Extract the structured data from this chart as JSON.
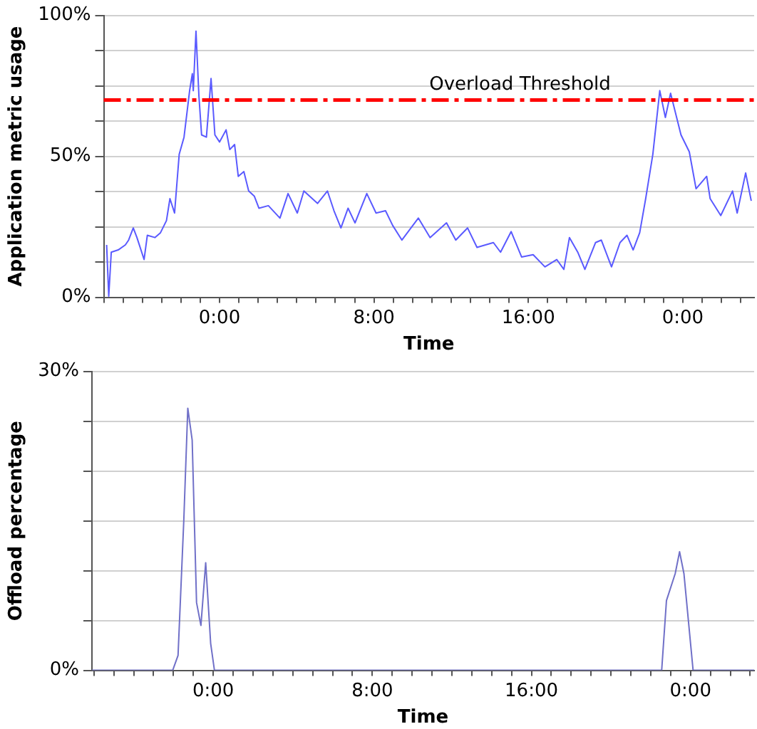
{
  "chart_data": [
    {
      "type": "line",
      "xlabel": "Time",
      "ylabel": "Application metric usage",
      "grid": "y",
      "xlim": [
        -6,
        27.7
      ],
      "ylim": [
        0,
        100
      ],
      "xticks": [
        {
          "value": -6,
          "label": null
        },
        {
          "value": -5,
          "label": null
        },
        {
          "value": -4,
          "label": null
        },
        {
          "value": -3,
          "label": null
        },
        {
          "value": -2,
          "label": null
        },
        {
          "value": -1,
          "label": null
        },
        {
          "value": 0,
          "label": "0:00"
        },
        {
          "value": 1,
          "label": null
        },
        {
          "value": 2,
          "label": null
        },
        {
          "value": 3,
          "label": null
        },
        {
          "value": 4,
          "label": null
        },
        {
          "value": 5,
          "label": null
        },
        {
          "value": 6,
          "label": null
        },
        {
          "value": 7,
          "label": null
        },
        {
          "value": 8,
          "label": "8:00"
        },
        {
          "value": 9,
          "label": null
        },
        {
          "value": 10,
          "label": null
        },
        {
          "value": 11,
          "label": null
        },
        {
          "value": 12,
          "label": null
        },
        {
          "value": 13,
          "label": null
        },
        {
          "value": 14,
          "label": null
        },
        {
          "value": 15,
          "label": null
        },
        {
          "value": 16,
          "label": "16:00"
        },
        {
          "value": 17,
          "label": null
        },
        {
          "value": 18,
          "label": null
        },
        {
          "value": 19,
          "label": null
        },
        {
          "value": 20,
          "label": null
        },
        {
          "value": 21,
          "label": null
        },
        {
          "value": 22,
          "label": null
        },
        {
          "value": 23,
          "label": null
        },
        {
          "value": 24,
          "label": "0:00"
        },
        {
          "value": 25,
          "label": null
        },
        {
          "value": 26,
          "label": null
        },
        {
          "value": 27,
          "label": null
        }
      ],
      "yticks": [
        {
          "value": 0,
          "label": "0%"
        },
        {
          "value": 12.5,
          "label": null
        },
        {
          "value": 25,
          "label": null
        },
        {
          "value": 37.5,
          "label": null
        },
        {
          "value": 50,
          "label": "50%"
        },
        {
          "value": 62.5,
          "label": null
        },
        {
          "value": 75,
          "label": null
        },
        {
          "value": 87.5,
          "label": null
        },
        {
          "value": 100,
          "label": "100%"
        }
      ],
      "x": [
        -5.85,
        -5.74,
        -5.61,
        -5.25,
        -4.88,
        -4.71,
        -4.47,
        -4.28,
        -3.91,
        -3.74,
        -3.35,
        -3.06,
        -2.75,
        -2.57,
        -2.33,
        -2.09,
        -1.84,
        -1.55,
        -1.41,
        -1.36,
        -1.22,
        -1.07,
        -0.93,
        -0.68,
        -0.44,
        -0.24,
        0,
        0.34,
        0.53,
        0.78,
        0.97,
        1.26,
        1.51,
        1.8,
        2.04,
        2.53,
        3.13,
        3.55,
        4.03,
        4.37,
        5.08,
        5.59,
        5.93,
        6.29,
        6.66,
        7.02,
        7.63,
        8.11,
        8.6,
        8.97,
        9.45,
        10.3,
        10.91,
        11.76,
        12.24,
        12.85,
        13.34,
        14.19,
        14.56,
        15.11,
        15.65,
        16.25,
        16.86,
        17.47,
        17.84,
        18.13,
        18.56,
        18.93,
        19.48,
        19.78,
        20.31,
        20.75,
        21.11,
        21.43,
        21.77,
        22.08,
        22.45,
        22.81,
        23.1,
        23.37,
        23.91,
        24.34,
        24.69,
        25.24,
        25.42,
        25.97,
        26.58,
        26.82,
        27.26,
        27.55
      ],
      "series": [
        {
          "color": "#5a5aff",
          "values": [
            18.6,
            0.4,
            16,
            16.8,
            18.6,
            20.3,
            24.6,
            21.2,
            13.4,
            22,
            21.2,
            22.9,
            27.2,
            35,
            29.9,
            50.7,
            56.8,
            73.3,
            79.3,
            73.3,
            94.4,
            71.6,
            57.6,
            56.8,
            77.6,
            57.6,
            55.1,
            59.4,
            52.4,
            54.2,
            42.9,
            44.6,
            37.7,
            35.9,
            31.6,
            32.5,
            28.1,
            36.8,
            29.9,
            37.7,
            33.3,
            37.7,
            30.7,
            24.6,
            31.6,
            26.4,
            36.8,
            29.9,
            30.7,
            25.5,
            20.3,
            28.1,
            21.2,
            26.4,
            20.3,
            24.6,
            17.7,
            19.4,
            16,
            23.3,
            14.3,
            15.1,
            10.8,
            13.4,
            9.9,
            21.2,
            16,
            9.9,
            19.4,
            20.3,
            10.8,
            19.4,
            22,
            16.8,
            22.9,
            35,
            50.7,
            73.3,
            63.8,
            72.4,
            57.6,
            51.6,
            38.5,
            42.9,
            35,
            29,
            37.7,
            29.9,
            44.1,
            34.2
          ]
        }
      ],
      "ref_lines": [
        {
          "axis": "y",
          "value": 70,
          "label": "Overload Threshold",
          "color": "#ff0000",
          "line_style": "dashed"
        }
      ]
    },
    {
      "type": "line",
      "xlabel": "Time",
      "ylabel": "Offload percentage",
      "grid": "y",
      "xlim": [
        -6.1,
        27.2
      ],
      "ylim": [
        0,
        30
      ],
      "xticks": [
        {
          "value": -6,
          "label": null
        },
        {
          "value": -5,
          "label": null
        },
        {
          "value": -4,
          "label": null
        },
        {
          "value": -3,
          "label": null
        },
        {
          "value": -2,
          "label": null
        },
        {
          "value": -1,
          "label": null
        },
        {
          "value": 0,
          "label": "0:00"
        },
        {
          "value": 1,
          "label": null
        },
        {
          "value": 2,
          "label": null
        },
        {
          "value": 3,
          "label": null
        },
        {
          "value": 4,
          "label": null
        },
        {
          "value": 5,
          "label": null
        },
        {
          "value": 6,
          "label": null
        },
        {
          "value": 7,
          "label": null
        },
        {
          "value": 8,
          "label": "8:00"
        },
        {
          "value": 9,
          "label": null
        },
        {
          "value": 10,
          "label": null
        },
        {
          "value": 11,
          "label": null
        },
        {
          "value": 12,
          "label": null
        },
        {
          "value": 13,
          "label": null
        },
        {
          "value": 14,
          "label": null
        },
        {
          "value": 15,
          "label": null
        },
        {
          "value": 16,
          "label": "16:00"
        },
        {
          "value": 17,
          "label": null
        },
        {
          "value": 18,
          "label": null
        },
        {
          "value": 19,
          "label": null
        },
        {
          "value": 20,
          "label": null
        },
        {
          "value": 21,
          "label": null
        },
        {
          "value": 22,
          "label": null
        },
        {
          "value": 23,
          "label": null
        },
        {
          "value": 24,
          "label": "0:00"
        },
        {
          "value": 25,
          "label": null
        },
        {
          "value": 26,
          "label": null
        },
        {
          "value": 27,
          "label": null
        }
      ],
      "yticks": [
        {
          "value": 0,
          "label": "0%"
        },
        {
          "value": 5,
          "label": null
        },
        {
          "value": 10,
          "label": null
        },
        {
          "value": 15,
          "label": null
        },
        {
          "value": 20,
          "label": null
        },
        {
          "value": 25,
          "label": null
        },
        {
          "value": 30,
          "label": "30%"
        }
      ],
      "x": [
        -6.1,
        -2.04,
        -1.77,
        -1.48,
        -1.28,
        -1.06,
        -0.84,
        -0.62,
        -0.38,
        -0.13,
        0.06,
        22.55,
        22.79,
        23.23,
        23.45,
        23.67,
        24.13,
        27.2
      ],
      "series": [
        {
          "color": "#7070c8",
          "values": [
            0,
            0,
            1.5,
            15.1,
            26.3,
            23.1,
            6.8,
            4.5,
            10.8,
            2.7,
            0,
            0,
            7,
            9.7,
            11.9,
            9.7,
            0,
            0
          ]
        }
      ]
    }
  ]
}
